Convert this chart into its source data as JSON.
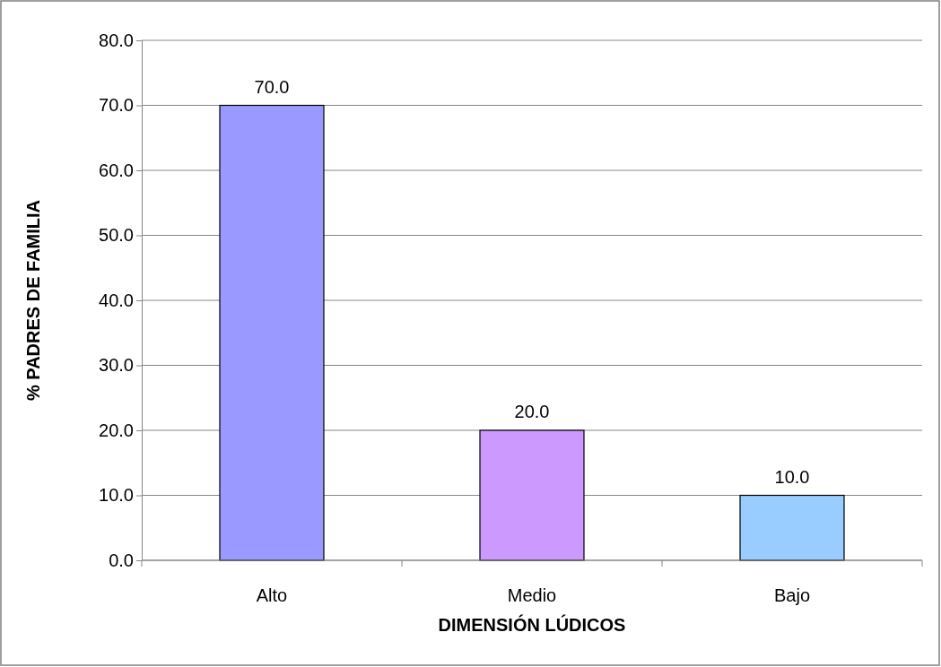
{
  "chart_data": {
    "type": "bar",
    "xlabel": "DIMENSIÓN LÚDICOS",
    "ylabel": "% PADRES DE FAMILIA",
    "categories": [
      "Alto",
      "Medio",
      "Bajo"
    ],
    "values": [
      70.0,
      20.0,
      10.0
    ],
    "colors": [
      "#9999ff",
      "#cc99ff",
      "#99ccff"
    ],
    "ylim": [
      0,
      80
    ],
    "yticks": [
      {
        "value": 0,
        "label": "0.0"
      },
      {
        "value": 10,
        "label": "10.0"
      },
      {
        "value": 20,
        "label": "20.0"
      },
      {
        "value": 30,
        "label": "30.0"
      },
      {
        "value": 40,
        "label": "40.0"
      },
      {
        "value": 50,
        "label": "50.0"
      },
      {
        "value": 60,
        "label": "60.0"
      },
      {
        "value": 70,
        "label": "70.0"
      },
      {
        "value": 80,
        "label": "80.0"
      }
    ],
    "value_labels": [
      "70.0",
      "20.0",
      "10.0"
    ],
    "grid": "y"
  }
}
